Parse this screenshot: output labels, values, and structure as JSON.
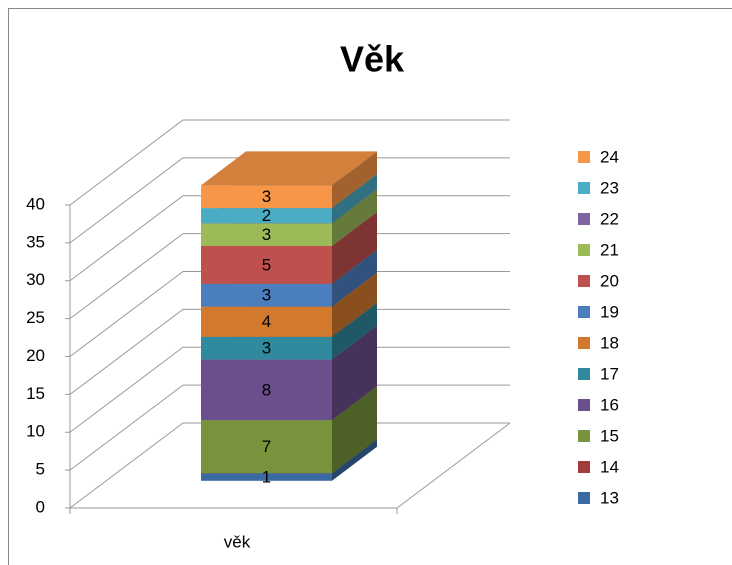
{
  "chart_data": {
    "type": "bar",
    "stacked": true,
    "three_d": true,
    "title": "Věk",
    "categories": [
      "věk"
    ],
    "series": [
      {
        "name": "13",
        "color": "#3b6aa3",
        "values": [
          1
        ]
      },
      {
        "name": "14",
        "color": "#a03c3a",
        "values": [
          0
        ]
      },
      {
        "name": "15",
        "color": "#77933c",
        "values": [
          7
        ]
      },
      {
        "name": "16",
        "color": "#6a4f8c",
        "values": [
          8
        ]
      },
      {
        "name": "17",
        "color": "#31899d",
        "values": [
          3
        ]
      },
      {
        "name": "18",
        "color": "#d2792e",
        "values": [
          4
        ]
      },
      {
        "name": "19",
        "color": "#4a7ebf",
        "values": [
          3
        ]
      },
      {
        "name": "20",
        "color": "#c0504d",
        "values": [
          5
        ]
      },
      {
        "name": "21",
        "color": "#9bbb59",
        "values": [
          3
        ]
      },
      {
        "name": "22",
        "color": "#8064a2",
        "values": [
          0
        ]
      },
      {
        "name": "23",
        "color": "#4bacc6",
        "values": [
          2
        ]
      },
      {
        "name": "24",
        "color": "#f79646",
        "values": [
          3
        ]
      }
    ],
    "ylim": [
      0,
      40
    ],
    "yticks": [
      0,
      5,
      10,
      15,
      20,
      25,
      30,
      35,
      40
    ],
    "grid": true,
    "legend": "right"
  }
}
